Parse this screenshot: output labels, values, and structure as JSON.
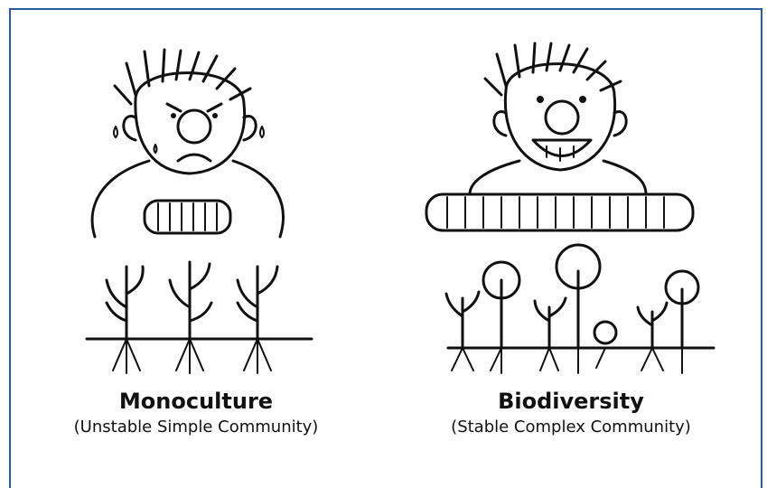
{
  "panels": [
    {
      "title": "Monoculture",
      "subtitle": "(Unstable Simple Community)"
    },
    {
      "title": "Biodiversity",
      "subtitle": "(Stable Complex Community)"
    }
  ]
}
